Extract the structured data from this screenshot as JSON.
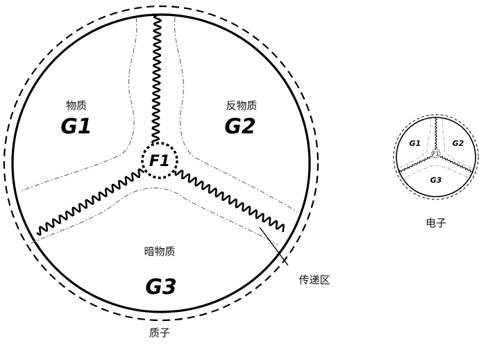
{
  "proton": {
    "caption": "质子",
    "regions": {
      "g1": {
        "name": "物质",
        "label": "G1"
      },
      "g2": {
        "name": "反物质",
        "label": "G2"
      },
      "g3": {
        "name": "暗物质",
        "label": "G3"
      }
    },
    "center_label": "F1",
    "transfer_zone_label": "传递区"
  },
  "electron": {
    "caption": "电子",
    "labels": {
      "g1": "G1",
      "g2": "G2",
      "g3": "G3",
      "center": "F1"
    }
  }
}
